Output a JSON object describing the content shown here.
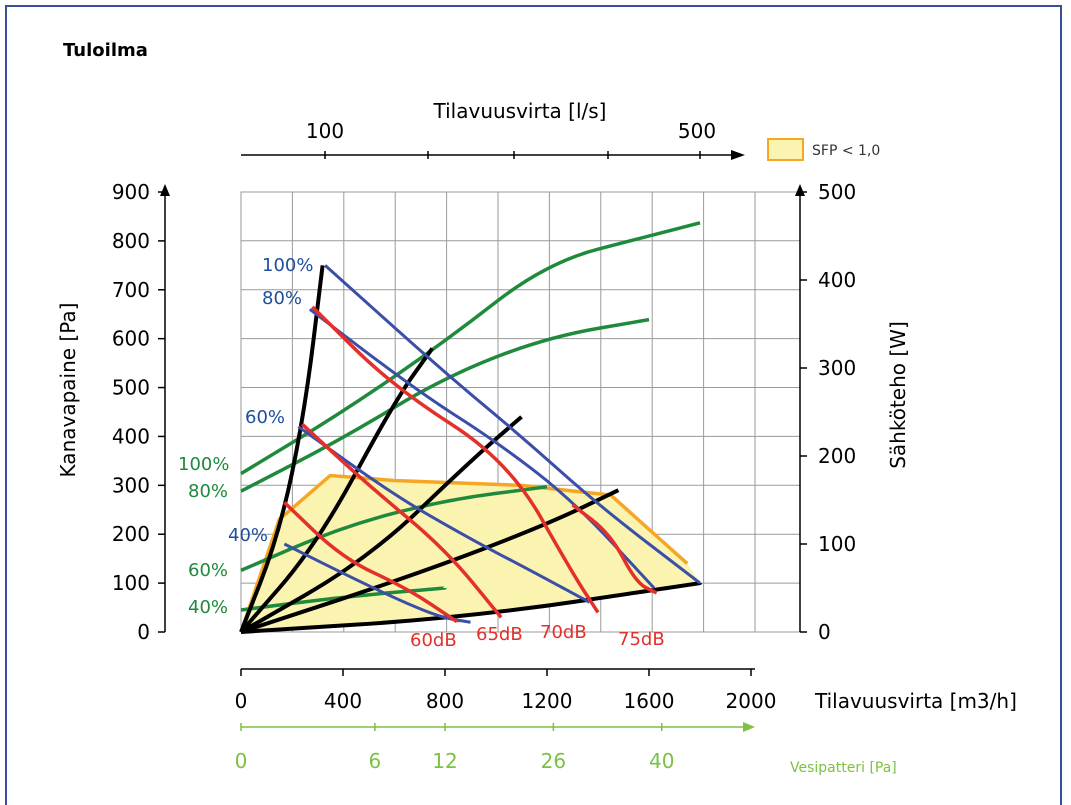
{
  "chart_data": {
    "type": "line",
    "title": "Tuloilma",
    "x_bottom": {
      "label": "Tilavuusvirta [m3/h]",
      "ticks": [
        0,
        400,
        800,
        1200,
        1600,
        2000
      ],
      "range": [
        0,
        2000
      ]
    },
    "x_top": {
      "label": "Tilavuusvirta [l/s]",
      "tick_labels": [
        "100",
        "500"
      ]
    },
    "x_water": {
      "label": "Vesipatteri [Pa]",
      "tick_labels": [
        "0",
        "6",
        "12",
        "26",
        "40"
      ],
      "at_m3h": [
        0,
        525,
        800,
        1225,
        1650
      ]
    },
    "y_left": {
      "label": "Kanavapaine [Pa]",
      "ticks": [
        0,
        100,
        200,
        300,
        400,
        500,
        600,
        700,
        800,
        900
      ],
      "range": [
        0,
        900
      ]
    },
    "y_right": {
      "label": "Sähköteho [W]",
      "ticks": [
        0,
        100,
        200,
        300,
        400,
        500
      ],
      "range": [
        0,
        500
      ]
    },
    "legend": {
      "label": "SFP < 1,0",
      "color": "#f5a623",
      "fill": "#fbf3b0",
      "placement": "top-right"
    },
    "colors": {
      "speed": "#3b4ea8",
      "noise": "#e3302b",
      "system": "#000000",
      "power": "#1f8a3c",
      "sfp": "#f5a623",
      "water": "#7cc142"
    },
    "speed_curves": [
      {
        "name": "100%",
        "points": [
          [
            330,
            750
          ],
          [
            800,
            530
          ],
          [
            1100,
            400
          ],
          [
            1400,
            260
          ],
          [
            1800,
            100
          ]
        ]
      },
      {
        "name": "80%",
        "points": [
          [
            270,
            660
          ],
          [
            700,
            490
          ],
          [
            1000,
            390
          ],
          [
            1300,
            270
          ],
          [
            1620,
            90
          ]
        ]
      },
      {
        "name": "60%",
        "points": [
          [
            225,
            420
          ],
          [
            600,
            280
          ],
          [
            900,
            190
          ],
          [
            1120,
            130
          ],
          [
            1370,
            60
          ]
        ]
      },
      {
        "name": "40%",
        "points": [
          [
            170,
            180
          ],
          [
            400,
            120
          ],
          [
            600,
            70
          ],
          [
            780,
            30
          ],
          [
            900,
            20
          ]
        ]
      }
    ],
    "noise_curves": [
      {
        "name": "60dB",
        "points": [
          [
            170,
            265
          ],
          [
            400,
            150
          ],
          [
            650,
            90
          ],
          [
            850,
            20
          ]
        ]
      },
      {
        "name": "65dB",
        "points": [
          [
            240,
            425
          ],
          [
            500,
            300
          ],
          [
            800,
            170
          ],
          [
            1020,
            30
          ]
        ]
      },
      {
        "name": "70dB",
        "points": [
          [
            280,
            665
          ],
          [
            600,
            500
          ],
          [
            1050,
            350
          ],
          [
            1300,
            120
          ],
          [
            1400,
            40
          ]
        ]
      },
      {
        "name": "75dB",
        "points": [
          [
            1300,
            260
          ],
          [
            1450,
            200
          ],
          [
            1550,
            100
          ],
          [
            1630,
            80
          ]
        ]
      }
    ],
    "noise_labels": [
      "60dB",
      "65dB",
      "70dB",
      "75dB"
    ],
    "system_curves": [
      {
        "points": [
          [
            0,
            0
          ],
          [
            150,
            200
          ],
          [
            250,
            450
          ],
          [
            320,
            750
          ]
        ]
      },
      {
        "points": [
          [
            0,
            0
          ],
          [
            300,
            180
          ],
          [
            600,
            470
          ],
          [
            750,
            580
          ]
        ]
      },
      {
        "points": [
          [
            0,
            0
          ],
          [
            500,
            150
          ],
          [
            900,
            350
          ],
          [
            1100,
            440
          ]
        ]
      },
      {
        "points": [
          [
            0,
            0
          ],
          [
            700,
            120
          ],
          [
            1200,
            220
          ],
          [
            1480,
            290
          ]
        ]
      },
      {
        "points": [
          [
            0,
            0
          ],
          [
            900,
            30
          ],
          [
            1800,
            100
          ]
        ]
      }
    ],
    "power_curves_W": [
      {
        "name": "100%",
        "points": [
          [
            0,
            180
          ],
          [
            400,
            250
          ],
          [
            800,
            330
          ],
          [
            1200,
            420
          ],
          [
            1600,
            450
          ],
          [
            1800,
            465
          ]
        ]
      },
      {
        "name": "80%",
        "points": [
          [
            0,
            160
          ],
          [
            400,
            220
          ],
          [
            800,
            290
          ],
          [
            1200,
            335
          ],
          [
            1600,
            355
          ]
        ]
      },
      {
        "name": "60%",
        "points": [
          [
            0,
            70
          ],
          [
            400,
            120
          ],
          [
            800,
            150
          ],
          [
            1200,
            165
          ]
        ]
      },
      {
        "name": "40%",
        "points": [
          [
            0,
            25
          ],
          [
            400,
            40
          ],
          [
            800,
            50
          ]
        ]
      }
    ],
    "speed_labels": [
      "100%",
      "80%",
      "60%",
      "40%"
    ],
    "power_labels": [
      "100%",
      "80%",
      "60%",
      "40%"
    ],
    "sfp_region": [
      [
        0,
        0
      ],
      [
        150,
        230
      ],
      [
        350,
        320
      ],
      [
        600,
        310
      ],
      [
        1100,
        300
      ],
      [
        1450,
        280
      ],
      [
        1750,
        140
      ]
    ]
  }
}
